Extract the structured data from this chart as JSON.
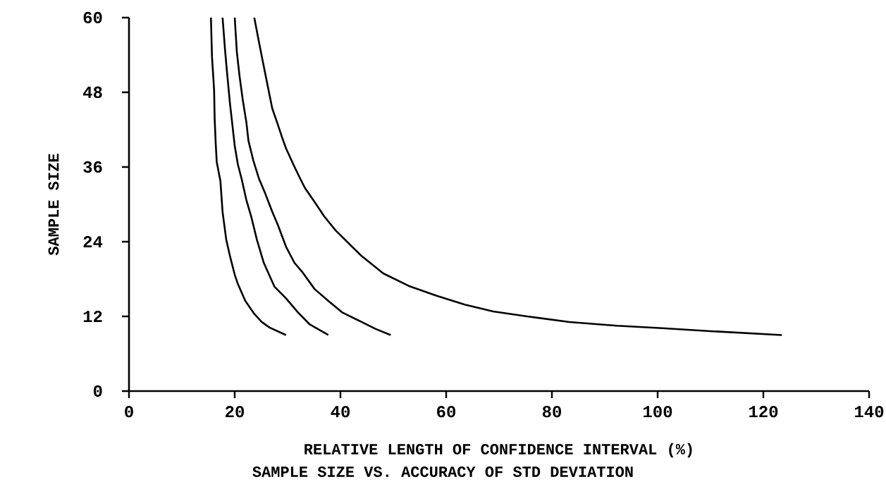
{
  "chart_data": {
    "type": "line",
    "title": "SAMPLE SIZE VS. ACCURACY OF STD DEVIATION",
    "xlabel": "RELATIVE LENGTH OF CONFIDENCE INTERVAL (%)",
    "ylabel": "SAMPLE SIZE",
    "xlim": [
      0,
      140
    ],
    "ylim": [
      0,
      60
    ],
    "xticks": [
      0,
      20,
      40,
      60,
      80,
      100,
      120,
      140
    ],
    "yticks": [
      0,
      12,
      24,
      36,
      48,
      60
    ],
    "series": [
      {
        "color": "#000000",
        "x": [
          15.5,
          15.7,
          16.1,
          16.2,
          16.4,
          16.6,
          17.3,
          17.7,
          18.4,
          19.1,
          20.0,
          20.6,
          22.0,
          23.7,
          25.1,
          26.6,
          29.7
        ],
        "values": [
          60,
          53.7,
          48.4,
          43.9,
          39.8,
          36.8,
          33.7,
          28.8,
          24.3,
          21.7,
          18.7,
          17.2,
          14.5,
          12.4,
          11.1,
          10.2,
          9
        ]
      },
      {
        "color": "#000000",
        "x": [
          17.7,
          18.2,
          18.6,
          19.1,
          19.5,
          20.0,
          20.6,
          21.3,
          22.2,
          23.1,
          24.2,
          25.5,
          27.5,
          29.7,
          32.0,
          34.2,
          37.7
        ],
        "values": [
          60,
          54.5,
          50.7,
          46.2,
          43.2,
          39.4,
          36.4,
          34.1,
          30.7,
          28.1,
          24.3,
          20.6,
          16.8,
          14.9,
          12.6,
          10.7,
          9
        ]
      },
      {
        "color": "#000000",
        "x": [
          20.0,
          20.4,
          20.9,
          21.5,
          22.2,
          22.6,
          23.5,
          24.6,
          25.7,
          27.1,
          28.2,
          29.7,
          31.3,
          32.9,
          35.1,
          37.7,
          40.4,
          44.0,
          46.6,
          49.5
        ],
        "values": [
          60,
          54.5,
          50.7,
          46.9,
          43.2,
          40.2,
          37.1,
          34.1,
          31.9,
          28.8,
          26.6,
          23.2,
          20.6,
          19.0,
          16.4,
          14.5,
          12.6,
          11.1,
          10.0,
          9
        ]
      },
      {
        "color": "#000000",
        "x": [
          23.7,
          24.6,
          25.3,
          26.2,
          27.1,
          28.0,
          28.9,
          29.7,
          31.1,
          32.4,
          33.3,
          35.1,
          36.9,
          39.1,
          42.2,
          44.0,
          48.1,
          52.9,
          58.2,
          63.5,
          68.9,
          75.3,
          83.3,
          92.3,
          100.9,
          110.5,
          123.5
        ],
        "values": [
          60,
          56.0,
          53.0,
          49.2,
          45.4,
          43.2,
          40.9,
          39.0,
          36.4,
          34.1,
          32.6,
          30.4,
          28.1,
          25.8,
          23.2,
          21.7,
          18.9,
          16.9,
          15.3,
          13.9,
          12.8,
          12.0,
          11.1,
          10.5,
          10.1,
          9.6,
          9
        ]
      }
    ]
  }
}
